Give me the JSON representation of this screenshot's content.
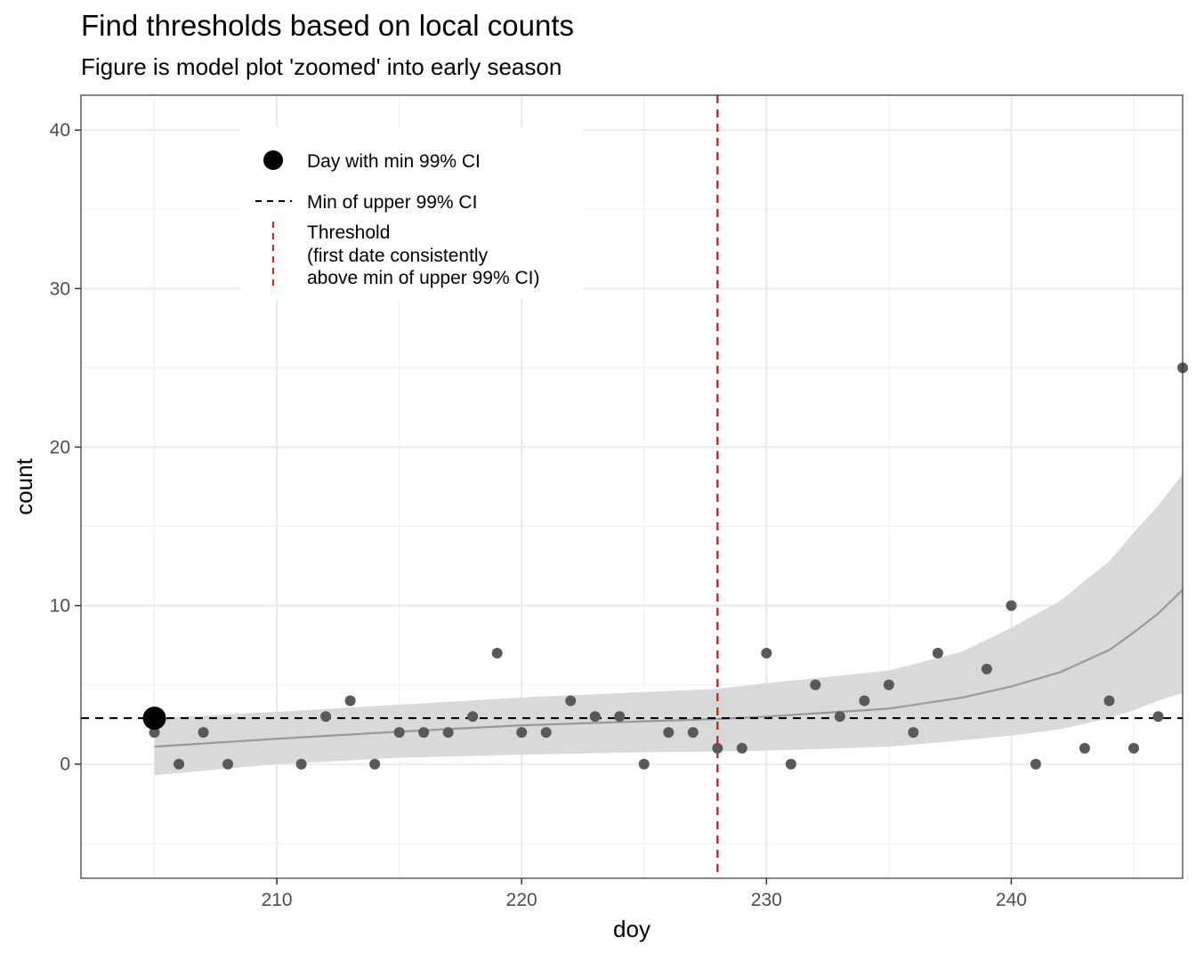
{
  "chart_data": {
    "type": "scatter",
    "title": "Find thresholds based on local counts",
    "subtitle": "Figure is model plot 'zoomed' into early season",
    "xlabel": "doy",
    "ylabel": "count",
    "xlim": [
      202,
      247
    ],
    "ylim": [
      -7.2,
      42.2
    ],
    "x_ticks": [
      210,
      220,
      230,
      240
    ],
    "y_ticks": [
      0,
      10,
      20,
      30,
      40
    ],
    "x_tick_labels": [
      "210",
      "220",
      "230",
      "240"
    ],
    "y_tick_labels": [
      "0",
      "10",
      "20",
      "30",
      "40"
    ],
    "grid": true,
    "legend_position": "top-left inside plot",
    "points": [
      {
        "x": 205,
        "y": 2
      },
      {
        "x": 206,
        "y": 0
      },
      {
        "x": 207,
        "y": 2
      },
      {
        "x": 208,
        "y": 0
      },
      {
        "x": 211,
        "y": 0
      },
      {
        "x": 212,
        "y": 3
      },
      {
        "x": 213,
        "y": 4
      },
      {
        "x": 214,
        "y": 0
      },
      {
        "x": 215,
        "y": 2
      },
      {
        "x": 216,
        "y": 2
      },
      {
        "x": 217,
        "y": 2
      },
      {
        "x": 218,
        "y": 3
      },
      {
        "x": 219,
        "y": 7
      },
      {
        "x": 220,
        "y": 2
      },
      {
        "x": 221,
        "y": 2
      },
      {
        "x": 222,
        "y": 4
      },
      {
        "x": 223,
        "y": 3
      },
      {
        "x": 224,
        "y": 3
      },
      {
        "x": 225,
        "y": 0
      },
      {
        "x": 226,
        "y": 2
      },
      {
        "x": 227,
        "y": 2
      },
      {
        "x": 228,
        "y": 1
      },
      {
        "x": 229,
        "y": 1
      },
      {
        "x": 230,
        "y": 7
      },
      {
        "x": 231,
        "y": 0
      },
      {
        "x": 232,
        "y": 5
      },
      {
        "x": 233,
        "y": 3
      },
      {
        "x": 234,
        "y": 4
      },
      {
        "x": 235,
        "y": 5
      },
      {
        "x": 236,
        "y": 2
      },
      {
        "x": 237,
        "y": 7
      },
      {
        "x": 239,
        "y": 6
      },
      {
        "x": 240,
        "y": 10
      },
      {
        "x": 241,
        "y": 0
      },
      {
        "x": 243,
        "y": 1
      },
      {
        "x": 244,
        "y": 4
      },
      {
        "x": 245,
        "y": 1
      },
      {
        "x": 246,
        "y": 3
      },
      {
        "x": 247,
        "y": 25
      }
    ],
    "fit": {
      "x": [
        205,
        210,
        215,
        220,
        225,
        228,
        230,
        235,
        238,
        240,
        242,
        244,
        245,
        246,
        247
      ],
      "y": [
        1.1,
        1.6,
        2.05,
        2.45,
        2.7,
        2.85,
        3.0,
        3.5,
        4.2,
        4.9,
        5.8,
        7.2,
        8.3,
        9.5,
        11.0
      ],
      "lower": [
        -0.7,
        0.0,
        0.4,
        0.6,
        0.75,
        0.8,
        0.85,
        1.1,
        1.5,
        1.8,
        2.2,
        2.9,
        3.4,
        4.0,
        4.5
      ],
      "upper": [
        2.9,
        3.3,
        3.75,
        4.2,
        4.55,
        4.75,
        5.1,
        5.9,
        7.1,
        8.6,
        10.3,
        12.8,
        14.6,
        16.3,
        18.3
      ]
    },
    "min_ci_point": {
      "x": 205,
      "y": 2.9
    },
    "min_upper_ci": 2.9,
    "threshold_x": 228,
    "legend": {
      "point_label": "Day with min 99% CI",
      "dashed_label": "Min of upper 99% CI",
      "threshold_lines": [
        "Threshold",
        "(first date consistently",
        "above min of upper 99% CI)"
      ]
    },
    "colors": {
      "points": "#595959",
      "fit_line": "#999999",
      "ribbon": "#d9d9d9",
      "min_line": "#000000",
      "threshold": "#e41a1c",
      "big_point": "#000000"
    }
  }
}
